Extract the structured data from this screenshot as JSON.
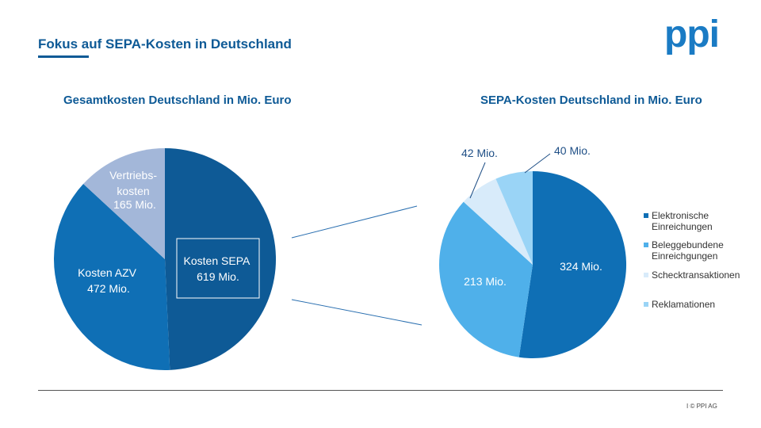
{
  "header": {
    "title": "Fokus auf SEPA-Kosten in Deutschland",
    "logo": "ppi"
  },
  "footer": {
    "text": "I  © PPI AG"
  },
  "colors": {
    "dark_blue": "#0e5a96",
    "mid_blue": "#0f6fb5",
    "light_blue": "#4fb0ea",
    "pale_blue": "#a3b7d9",
    "very_pale": "#d8ebfa",
    "sky": "#9ad4f6"
  },
  "chart_data": [
    {
      "type": "pie",
      "title": "Gesamtkosten Deutschland in Mio. Euro",
      "slices": [
        {
          "name": "Kosten SEPA",
          "value": 619,
          "label_line1": "Kosten SEPA",
          "label_line2": "619 Mio."
        },
        {
          "name": "Kosten AZV",
          "value": 472,
          "label_line1": "Kosten AZV",
          "label_line2": "472 Mio."
        },
        {
          "name": "Vertriebskosten",
          "value": 165,
          "label_line1": "Vertriebs-",
          "label_line2": "kosten",
          "label_line3": "165 Mio."
        }
      ]
    },
    {
      "type": "pie",
      "title": "SEPA-Kosten Deutschland in Mio. Euro",
      "slices": [
        {
          "name": "Elektronische Einreichungen",
          "value": 324,
          "label": "324 Mio."
        },
        {
          "name": "Beleggebundene Einreichgungen",
          "value": 213,
          "label": "213 Mio."
        },
        {
          "name": "Schecktransaktionen",
          "value": 42,
          "label": "42 Mio."
        },
        {
          "name": "Reklamationen",
          "value": 40,
          "label": "40 Mio."
        }
      ],
      "legend": [
        {
          "line1": "Elektronische",
          "line2": "Einreichungen"
        },
        {
          "line1": "Beleggebundene",
          "line2": "Einreichgungen"
        },
        {
          "line1": "Schecktransaktionen",
          "line2": ""
        },
        {
          "line1": "Reklamationen",
          "line2": ""
        }
      ]
    }
  ]
}
